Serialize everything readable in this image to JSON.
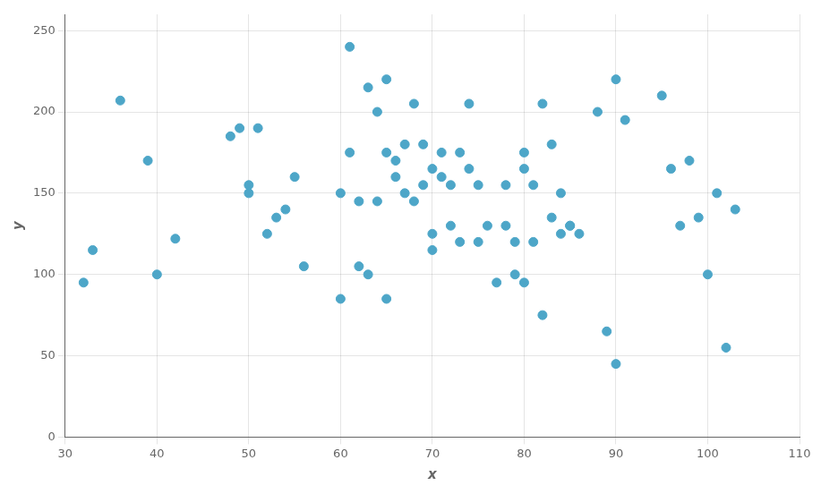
{
  "chart_data": {
    "type": "scatter",
    "x": [
      32,
      33,
      36,
      39,
      40,
      42,
      48,
      49,
      50,
      50,
      51,
      52,
      53,
      54,
      55,
      56,
      60,
      60,
      61,
      61,
      62,
      62,
      63,
      63,
      64,
      64,
      65,
      65,
      65,
      66,
      66,
      67,
      67,
      68,
      68,
      69,
      69,
      70,
      70,
      70,
      71,
      71,
      72,
      72,
      73,
      73,
      74,
      74,
      75,
      75,
      76,
      77,
      78,
      78,
      79,
      79,
      80,
      80,
      80,
      81,
      81,
      82,
      82,
      83,
      83,
      84,
      84,
      85,
      85,
      86,
      88,
      89,
      90,
      90,
      91,
      95,
      96,
      97,
      98,
      99,
      100,
      101,
      102,
      103
    ],
    "values": [
      95,
      115,
      207,
      170,
      100,
      122,
      185,
      190,
      150,
      155,
      190,
      125,
      135,
      140,
      160,
      105,
      150,
      85,
      240,
      175,
      145,
      105,
      215,
      100,
      145,
      200,
      220,
      175,
      85,
      170,
      160,
      150,
      180,
      205,
      145,
      155,
      180,
      115,
      125,
      165,
      160,
      175,
      155,
      130,
      120,
      175,
      165,
      205,
      120,
      155,
      130,
      95,
      130,
      155,
      100,
      120,
      175,
      165,
      95,
      155,
      120,
      75,
      205,
      135,
      180,
      150,
      125,
      130,
      130,
      125,
      200,
      65,
      45,
      220,
      195,
      210,
      165,
      130,
      170,
      135,
      100,
      150,
      55,
      140
    ],
    "color": "#4da6c8",
    "xlabel": "x",
    "ylabel": "y",
    "xlim": [
      30,
      110
    ],
    "ylim": [
      0,
      260
    ],
    "xticks": [
      30,
      40,
      50,
      60,
      70,
      80,
      90,
      100,
      110
    ],
    "yticks": [
      0,
      50,
      100,
      150,
      200,
      250
    ],
    "grid": true
  }
}
